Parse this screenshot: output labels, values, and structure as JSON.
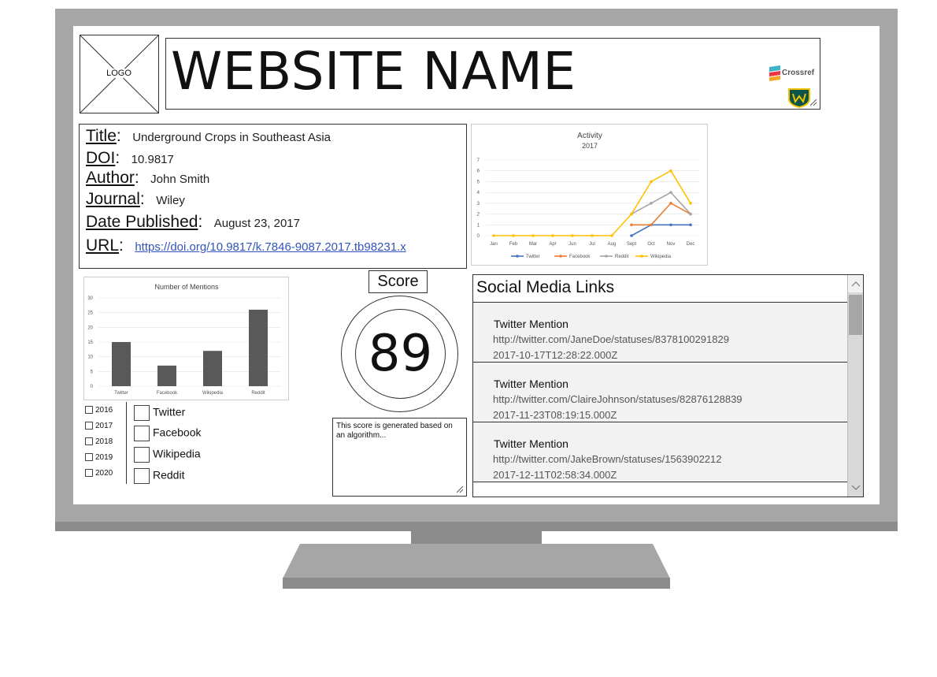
{
  "header": {
    "logo_label": "LOGO",
    "site_name": "WEBSITE NAME",
    "crossref_label": "Crossref"
  },
  "metadata": {
    "title_label": "Title",
    "title_value": "Underground Crops in Southeast Asia",
    "doi_label": "DOI",
    "doi_value": "10.9817",
    "author_label": "Author",
    "author_value": "John Smith",
    "journal_label": "Journal",
    "journal_value": "Wiley",
    "date_label": "Date Published",
    "date_value": "August 23, 2017",
    "url_label": "URL",
    "url_value": "https://doi.org/10.9817/k.7846-9087.2017.tb98231.x"
  },
  "activity_chart": {
    "chart_data": {
      "type": "line",
      "title": "Activity",
      "subtitle": "2017",
      "x": [
        "Jan",
        "Feb",
        "Mar",
        "Apr",
        "Jun",
        "Jul",
        "Aug",
        "Sept",
        "Oct",
        "Nov",
        "Dec"
      ],
      "ylim": [
        0,
        7
      ],
      "yticks": [
        0,
        1,
        2,
        3,
        4,
        5,
        6,
        7
      ],
      "grid": true,
      "legend": "bottom",
      "series": [
        {
          "name": "Twitter",
          "color": "#4472c4",
          "values": [
            null,
            null,
            null,
            null,
            null,
            null,
            null,
            0,
            1,
            1,
            1
          ]
        },
        {
          "name": "Facebook",
          "color": "#ed7d31",
          "values": [
            null,
            null,
            null,
            null,
            null,
            null,
            null,
            1,
            1,
            3,
            2
          ]
        },
        {
          "name": "Reddit",
          "color": "#a5a5a5",
          "values": [
            null,
            null,
            null,
            null,
            null,
            null,
            null,
            2,
            3,
            4,
            2
          ]
        },
        {
          "name": "Wikipedia",
          "color": "#ffc000",
          "values": [
            0,
            0,
            0,
            0,
            0,
            0,
            0,
            2,
            5,
            6,
            3
          ]
        }
      ]
    }
  },
  "mentions_chart": {
    "chart_data": {
      "type": "bar",
      "title": "Number of Mentions",
      "categories": [
        "Twitter",
        "Facebook",
        "Wikipedia",
        "Reddit"
      ],
      "values": [
        15,
        7,
        12,
        26
      ],
      "ylim": [
        0,
        30
      ],
      "yticks": [
        0,
        5,
        10,
        15,
        20,
        25,
        30
      ],
      "grid": true,
      "bar_color": "#595959"
    }
  },
  "filters": {
    "years": [
      "2016",
      "2017",
      "2018",
      "2019",
      "2020"
    ],
    "platforms": [
      "Twitter",
      "Facebook",
      "Wikipedia",
      "Reddit"
    ]
  },
  "score": {
    "label": "Score",
    "value": "89",
    "note": "This score is generated based on an algorithm..."
  },
  "social": {
    "title": "Social Media Links",
    "items": [
      {
        "title": "Twitter Mention",
        "url": "http://twitter.com/JaneDoe/statuses/8378100291829",
        "time": "2017-10-17T12:28:22.000Z"
      },
      {
        "title": "Twitter Mention",
        "url": "http://twitter.com/ClaireJohnson/statuses/82876128839",
        "time": "2017-11-23T08:19:15.000Z"
      },
      {
        "title": "Twitter Mention",
        "url": "http://twitter.com/JakeBrown/statuses/1563902212",
        "time": "2017-12-11T02:58:34.000Z"
      }
    ]
  }
}
